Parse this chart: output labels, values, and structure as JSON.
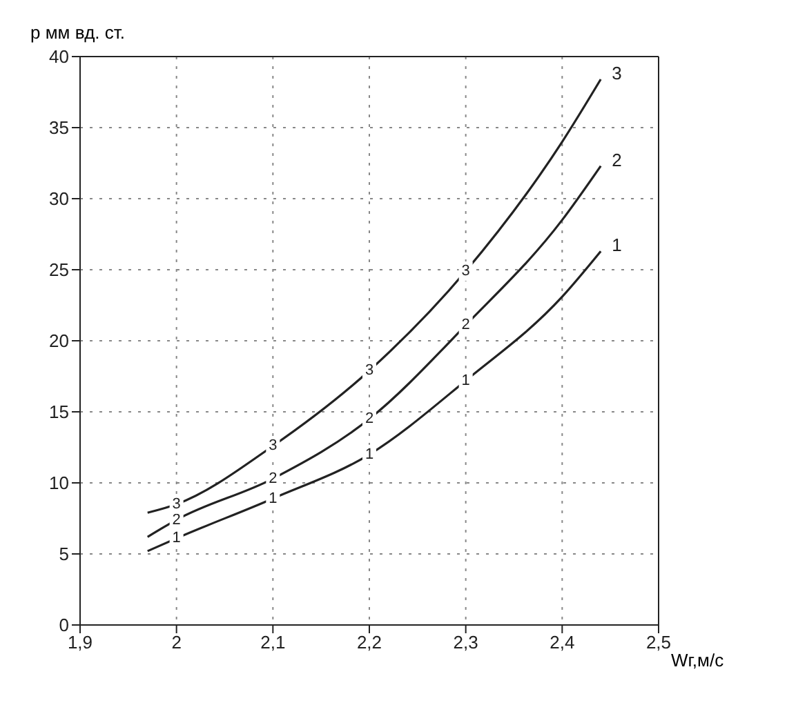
{
  "chart_data": {
    "type": "line",
    "xlabel": "Wг,м/с",
    "ylabel": "p мм вд. ст.",
    "xlim": [
      1.9,
      2.5
    ],
    "xticks": [
      {
        "value": 1.9,
        "label": "1,9"
      },
      {
        "value": 2,
        "label": "2"
      },
      {
        "value": 2.1,
        "label": "2,1"
      },
      {
        "value": 2.2,
        "label": "2,2"
      },
      {
        "value": 2.3,
        "label": "2,3"
      },
      {
        "value": 2.4,
        "label": "2,4"
      },
      {
        "value": 2.5,
        "label": "2,5"
      }
    ],
    "ylim": [
      0,
      40
    ],
    "yticks": [
      0,
      5,
      10,
      15,
      20,
      25,
      30,
      35,
      40
    ],
    "grid": true,
    "legend": false,
    "line_style": "solid",
    "series": [
      {
        "name": "1",
        "color": "#222222",
        "x": [
          1.97,
          2.0,
          2.1,
          2.2,
          2.3,
          2.4,
          2.44
        ],
        "values": [
          5.2,
          6.1,
          8.9,
          12.0,
          17.2,
          23.1,
          26.3
        ]
      },
      {
        "name": "2",
        "color": "#222222",
        "x": [
          1.97,
          2.0,
          2.1,
          2.2,
          2.3,
          2.4,
          2.44
        ],
        "values": [
          6.2,
          7.4,
          10.3,
          14.5,
          21.1,
          28.5,
          32.3
        ]
      },
      {
        "name": "3",
        "color": "#222222",
        "x": [
          1.97,
          2.0,
          2.1,
          2.2,
          2.3,
          2.4,
          2.44
        ],
        "values": [
          7.9,
          8.5,
          12.6,
          17.9,
          24.9,
          34.0,
          38.4
        ]
      }
    ]
  }
}
